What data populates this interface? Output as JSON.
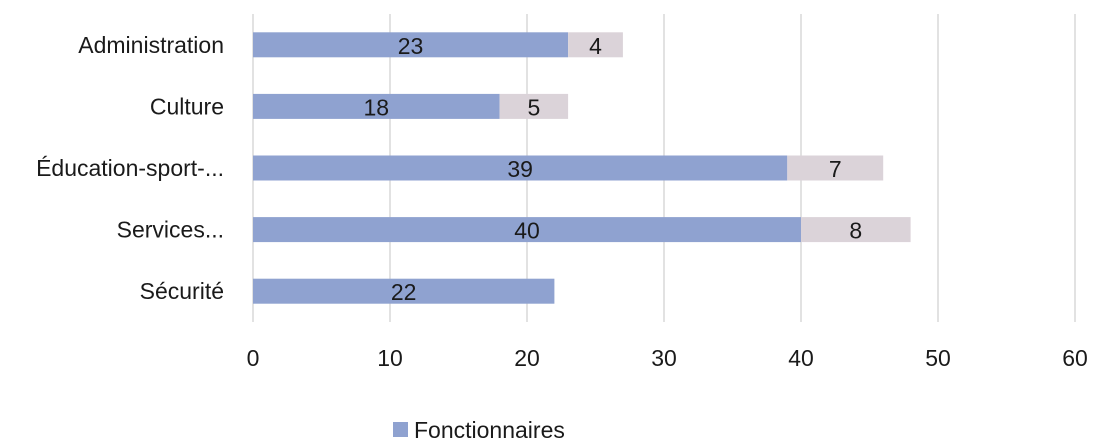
{
  "chart_data": {
    "type": "bar",
    "orientation": "horizontal",
    "stacked": true,
    "categories": [
      "Administration",
      "Culture",
      "Éducation-sport-...",
      "Services...",
      "Sécurité"
    ],
    "series": [
      {
        "name": "Fonctionnaires",
        "values": [
          23,
          18,
          39,
          40,
          22
        ],
        "color": "#8fa2d0"
      },
      {
        "values": [
          4,
          5,
          7,
          8,
          0
        ],
        "color": "#dbd3d9"
      }
    ],
    "xlim": [
      0,
      60
    ],
    "xticks": [
      0,
      10,
      20,
      30,
      40,
      50,
      60
    ],
    "grid": "vertical",
    "legend": {
      "position": "bottom",
      "entries": [
        "Fonctionnaires"
      ]
    }
  }
}
